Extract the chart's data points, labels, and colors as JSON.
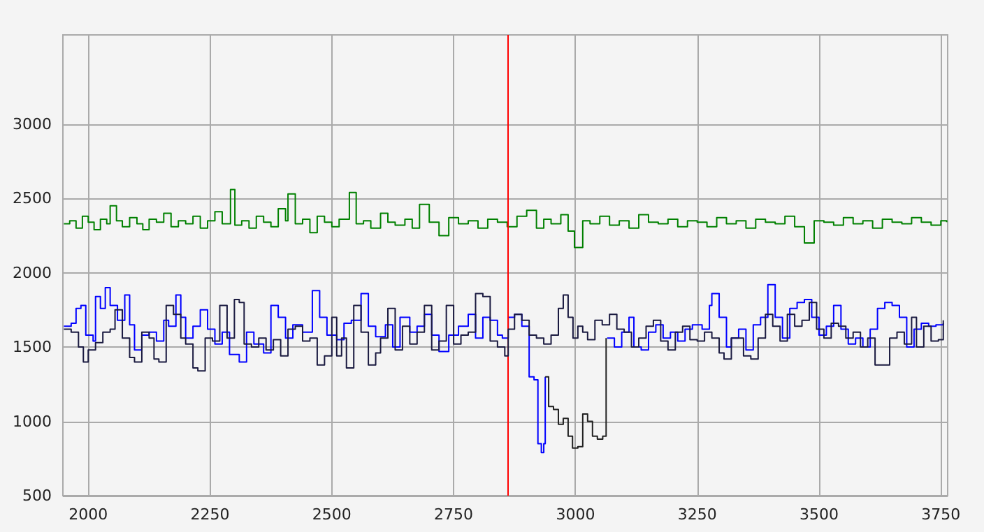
{
  "chart_data": {
    "type": "step",
    "xlim": [
      1948,
      3764
    ],
    "ylim": [
      500,
      3600
    ],
    "xticks": [
      2000,
      2250,
      2500,
      2750,
      3000,
      3250,
      3500,
      3750
    ],
    "yticks": [
      500,
      1000,
      1500,
      2000,
      2500,
      3000
    ],
    "grid": true,
    "marker": "none",
    "line_style": "solid",
    "ref_lines": [
      {
        "axis": "x",
        "value": 2861,
        "color": "#ff0000"
      }
    ],
    "series": [
      {
        "color": "#008000",
        "x": [
          1950,
          1962,
          1975,
          1988,
          2000,
          2012,
          2025,
          2038,
          2045,
          2058,
          2070,
          2085,
          2100,
          2112,
          2125,
          2140,
          2155,
          2170,
          2185,
          2200,
          2215,
          2230,
          2245,
          2260,
          2275,
          2292,
          2301,
          2315,
          2330,
          2345,
          2360,
          2375,
          2390,
          2405,
          2410,
          2425,
          2440,
          2455,
          2470,
          2485,
          2500,
          2515,
          2536,
          2550,
          2565,
          2580,
          2600,
          2615,
          2630,
          2650,
          2665,
          2680,
          2700,
          2720,
          2740,
          2760,
          2780,
          2800,
          2820,
          2840,
          2860,
          2880,
          2900,
          2920,
          2935,
          2950,
          2970,
          2985,
          2998,
          3015,
          3030,
          3050,
          3070,
          3090,
          3110,
          3130,
          3150,
          3170,
          3190,
          3210,
          3230,
          3250,
          3270,
          3290,
          3310,
          3330,
          3350,
          3370,
          3390,
          3410,
          3430,
          3450,
          3470,
          3490,
          3510,
          3530,
          3550,
          3570,
          3590,
          3610,
          3630,
          3650,
          3670,
          3690,
          3710,
          3730,
          3750,
          3762
        ],
        "values": [
          2330,
          2350,
          2300,
          2380,
          2340,
          2290,
          2360,
          2330,
          2450,
          2350,
          2310,
          2370,
          2330,
          2290,
          2360,
          2340,
          2400,
          2310,
          2350,
          2330,
          2380,
          2300,
          2350,
          2410,
          2330,
          2560,
          2320,
          2350,
          2300,
          2380,
          2340,
          2310,
          2430,
          2350,
          2530,
          2330,
          2360,
          2270,
          2380,
          2340,
          2310,
          2360,
          2540,
          2330,
          2350,
          2300,
          2400,
          2340,
          2320,
          2360,
          2300,
          2460,
          2340,
          2250,
          2370,
          2330,
          2350,
          2300,
          2360,
          2340,
          2310,
          2380,
          2420,
          2300,
          2360,
          2330,
          2390,
          2280,
          2170,
          2350,
          2330,
          2380,
          2320,
          2350,
          2300,
          2390,
          2340,
          2330,
          2360,
          2310,
          2350,
          2340,
          2310,
          2370,
          2330,
          2350,
          2300,
          2360,
          2340,
          2330,
          2380,
          2310,
          2200,
          2350,
          2340,
          2320,
          2370,
          2330,
          2350,
          2300,
          2360,
          2340,
          2330,
          2370,
          2340,
          2320,
          2350,
          2340
        ]
      },
      {
        "color": "#0000ff",
        "x": [
          1950,
          1965,
          1975,
          1985,
          1995,
          2010,
          2015,
          2025,
          2035,
          2045,
          2060,
          2075,
          2085,
          2095,
          2110,
          2125,
          2140,
          2155,
          2165,
          2180,
          2190,
          2200,
          2215,
          2230,
          2245,
          2260,
          2275,
          2290,
          2310,
          2325,
          2340,
          2360,
          2375,
          2390,
          2405,
          2420,
          2440,
          2460,
          2475,
          2490,
          2510,
          2525,
          2540,
          2560,
          2575,
          2590,
          2610,
          2625,
          2640,
          2660,
          2675,
          2690,
          2705,
          2720,
          2740,
          2760,
          2780,
          2795,
          2810,
          2825,
          2840,
          2850,
          2862,
          2875,
          2890,
          2905,
          2915,
          2923,
          2930,
          2935,
          2938,
          2939,
          3065,
          3080,
          3095,
          3110,
          3120,
          3135,
          3150,
          3165,
          3180,
          3195,
          3210,
          3225,
          3240,
          3260,
          3275,
          3280,
          3295,
          3310,
          3320,
          3335,
          3350,
          3365,
          3380,
          3395,
          3410,
          3425,
          3440,
          3455,
          3470,
          3485,
          3500,
          3515,
          3530,
          3545,
          3560,
          3575,
          3590,
          3605,
          3620,
          3635,
          3650,
          3665,
          3680,
          3695,
          3710,
          3725,
          3740,
          3755
        ],
        "values": [
          1640,
          1660,
          1760,
          1780,
          1580,
          1540,
          1840,
          1760,
          1900,
          1780,
          1680,
          1850,
          1650,
          1480,
          1580,
          1600,
          1540,
          1680,
          1640,
          1850,
          1700,
          1560,
          1640,
          1750,
          1620,
          1520,
          1600,
          1450,
          1400,
          1600,
          1520,
          1460,
          1780,
          1700,
          1560,
          1650,
          1600,
          1880,
          1700,
          1580,
          1550,
          1660,
          1680,
          1860,
          1640,
          1570,
          1650,
          1500,
          1700,
          1600,
          1640,
          1720,
          1580,
          1470,
          1580,
          1640,
          1720,
          1560,
          1700,
          1680,
          1580,
          1560,
          1700,
          1720,
          1640,
          1300,
          1280,
          850,
          790,
          850,
          1300,
          null,
          1560,
          1500,
          1600,
          1700,
          1500,
          1480,
          1600,
          1650,
          1560,
          1600,
          1540,
          1620,
          1650,
          1620,
          1780,
          1860,
          1700,
          1500,
          1560,
          1620,
          1480,
          1650,
          1700,
          1920,
          1700,
          1560,
          1760,
          1800,
          1820,
          1700,
          1580,
          1640,
          1780,
          1620,
          1520,
          1560,
          1500,
          1620,
          1760,
          1800,
          1780,
          1700,
          1500,
          1620,
          1660,
          1640,
          1650,
          1660
        ]
      },
      {
        "color": "#222222",
        "x": [
          2938,
          2945,
          2955,
          2965,
          2975,
          2985,
          2994,
          3005,
          3015,
          3025,
          3035,
          3045,
          3056,
          3063
        ],
        "values": [
          1300,
          1100,
          1080,
          980,
          1020,
          900,
          820,
          830,
          1050,
          1000,
          900,
          880,
          900,
          1560
        ]
      },
      {
        "color": "#1a1a40",
        "x": [
          1950,
          1965,
          1980,
          1990,
          2000,
          2015,
          2030,
          2045,
          2055,
          2070,
          2085,
          2095,
          2110,
          2125,
          2135,
          2145,
          2160,
          2175,
          2190,
          2200,
          2215,
          2225,
          2240,
          2255,
          2270,
          2285,
          2300,
          2310,
          2320,
          2335,
          2350,
          2365,
          2380,
          2395,
          2410,
          2425,
          2440,
          2455,
          2470,
          2485,
          2500,
          2510,
          2520,
          2530,
          2545,
          2560,
          2575,
          2590,
          2600,
          2615,
          2630,
          2645,
          2660,
          2675,
          2690,
          2705,
          2720,
          2735,
          2750,
          2765,
          2780,
          2795,
          2810,
          2825,
          2840,
          2855,
          2862,
          2875,
          2890,
          2905,
          2920,
          2935,
          2950,
          2965,
          2975,
          2985,
          2995,
          3005,
          3015,
          3025,
          3040,
          3055,
          3070,
          3085,
          3100,
          3115,
          3130,
          3145,
          3160,
          3175,
          3190,
          3205,
          3220,
          3235,
          3250,
          3265,
          3280,
          3295,
          3305,
          3320,
          3335,
          3345,
          3360,
          3375,
          3390,
          3405,
          3420,
          3435,
          3450,
          3465,
          3480,
          3495,
          3510,
          3525,
          3540,
          3555,
          3570,
          3585,
          3600,
          3615,
          3630,
          3645,
          3660,
          3675,
          3690,
          3700,
          3715,
          3730,
          3745,
          3755
        ],
        "values": [
          1620,
          1600,
          1500,
          1400,
          1480,
          1530,
          1600,
          1620,
          1750,
          1560,
          1430,
          1400,
          1600,
          1560,
          1420,
          1400,
          1780,
          1720,
          1560,
          1520,
          1360,
          1340,
          1560,
          1540,
          1780,
          1560,
          1820,
          1800,
          1520,
          1500,
          1560,
          1480,
          1550,
          1440,
          1620,
          1640,
          1540,
          1560,
          1380,
          1440,
          1700,
          1440,
          1560,
          1360,
          1780,
          1600,
          1380,
          1460,
          1560,
          1760,
          1480,
          1640,
          1520,
          1600,
          1780,
          1480,
          1540,
          1780,
          1520,
          1580,
          1600,
          1860,
          1840,
          1540,
          1500,
          1440,
          1620,
          1720,
          1680,
          1580,
          1560,
          1520,
          1580,
          1760,
          1850,
          1700,
          1560,
          1640,
          1600,
          1550,
          1680,
          1650,
          1720,
          1620,
          1600,
          1500,
          1560,
          1640,
          1680,
          1540,
          1480,
          1600,
          1640,
          1550,
          1540,
          1600,
          1560,
          1460,
          1420,
          1560,
          1560,
          1440,
          1420,
          1560,
          1720,
          1640,
          1540,
          1720,
          1640,
          1680,
          1800,
          1620,
          1560,
          1660,
          1640,
          1560,
          1600,
          1500,
          1560,
          1380,
          1380,
          1560,
          1600,
          1520,
          1700,
          1500,
          1640,
          1540,
          1550,
          1680
        ]
      }
    ]
  }
}
